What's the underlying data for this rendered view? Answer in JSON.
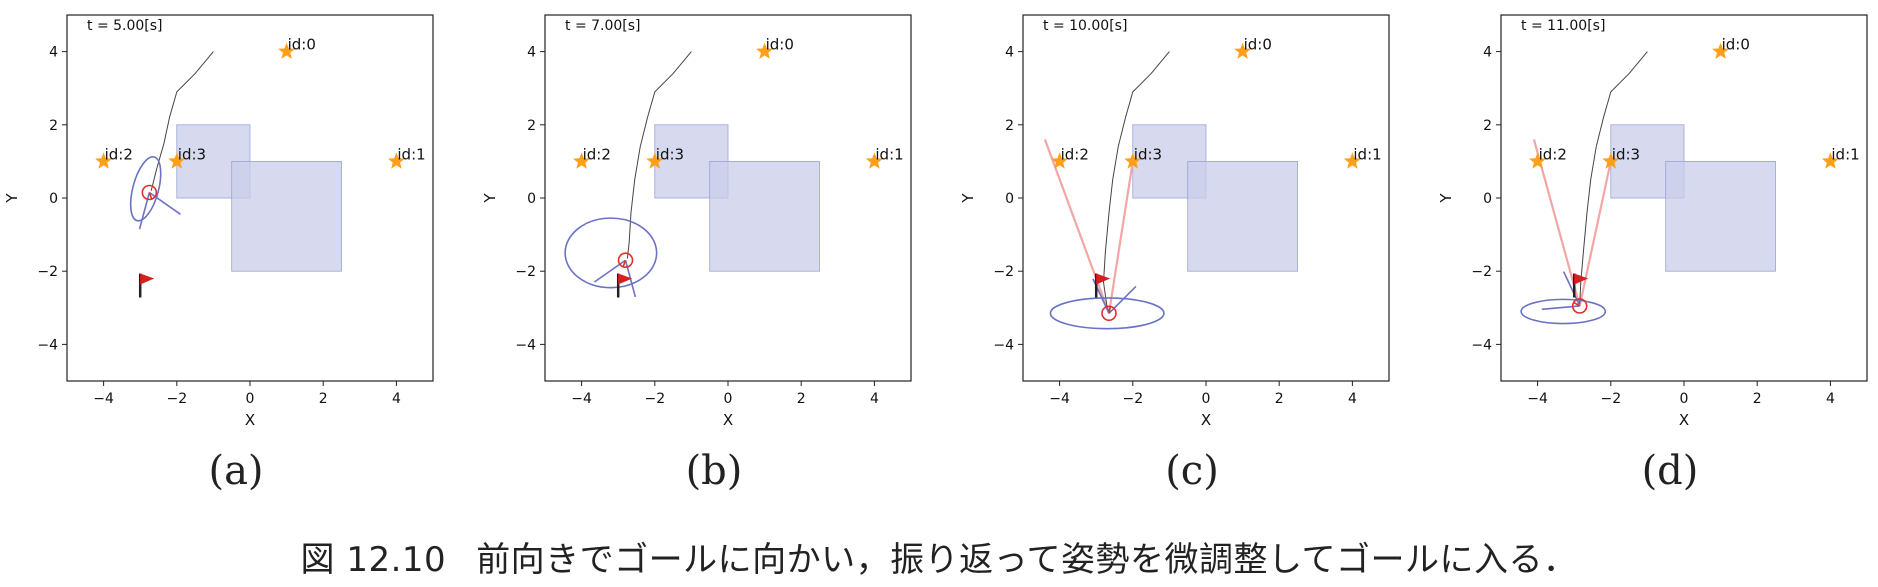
{
  "figure": {
    "caption_number": "図 12.10",
    "caption_text": "前向きでゴールに向かい，振り返って姿勢を微調整してゴールに入る．"
  },
  "colors": {
    "landmark": "#ff9f1a",
    "obstacle_fill": "#c9cdea",
    "obstacle_edge": "#9aa2d6",
    "path": "#444444",
    "ellipse": "#6b72c4",
    "robot": "#e0302a",
    "observation": "#f4a6a6",
    "flag": "#d81e1e"
  },
  "landmarks": [
    {
      "id": "id:0",
      "x": 1,
      "y": 4
    },
    {
      "id": "id:1",
      "x": 4,
      "y": 1
    },
    {
      "id": "id:2",
      "x": -4,
      "y": 1
    },
    {
      "id": "id:3",
      "x": -2,
      "y": 1
    }
  ],
  "obstacles": [
    {
      "x0": -2,
      "y0": 0,
      "x1": 0,
      "y1": 2
    },
    {
      "x0": -0.5,
      "y0": -2,
      "x1": 2.5,
      "y1": 1
    }
  ],
  "goal": {
    "x": -3,
    "y": -2.5
  },
  "axes": {
    "xlabel": "X",
    "ylabel": "Y",
    "xlim": [
      -5,
      5
    ],
    "ylim": [
      -5,
      5
    ],
    "xticks": [
      -4,
      -2,
      0,
      2,
      4
    ],
    "yticks": [
      -4,
      -2,
      0,
      2,
      4
    ]
  },
  "panels": [
    {
      "label": "(a)",
      "time": "t = 5.00[s]",
      "path": [
        [
          -1,
          4
        ],
        [
          -1.5,
          3.4
        ],
        [
          -2,
          2.9
        ],
        [
          -2.2,
          2.2
        ],
        [
          -2.35,
          1.5
        ],
        [
          -2.55,
          0.8
        ],
        [
          -2.7,
          0.2
        ]
      ],
      "robot": {
        "x": -2.75,
        "y": 0.15,
        "theta": -70
      },
      "ellipse": {
        "x": -2.85,
        "y": 0.25,
        "rx": 0.9,
        "ry": 0.35,
        "angle": 75
      },
      "observations": []
    },
    {
      "label": "(b)",
      "time": "t = 7.00[s]",
      "path": [
        [
          -1,
          4
        ],
        [
          -1.5,
          3.4
        ],
        [
          -2,
          2.9
        ],
        [
          -2.2,
          2.2
        ],
        [
          -2.4,
          1.4
        ],
        [
          -2.55,
          0.5
        ],
        [
          -2.65,
          -0.4
        ],
        [
          -2.7,
          -1.2
        ],
        [
          -2.75,
          -1.65
        ]
      ],
      "robot": {
        "x": -2.8,
        "y": -1.7,
        "theta": -110
      },
      "ellipse": {
        "x": -3.2,
        "y": -1.5,
        "rx": 1.25,
        "ry": 0.95,
        "angle": 0
      },
      "observations": []
    },
    {
      "label": "(c)",
      "time": "t = 10.00[s]",
      "path": [
        [
          -1,
          4
        ],
        [
          -1.5,
          3.4
        ],
        [
          -2,
          2.9
        ],
        [
          -2.2,
          2.2
        ],
        [
          -2.4,
          1.4
        ],
        [
          -2.55,
          0.5
        ],
        [
          -2.65,
          -0.4
        ],
        [
          -2.75,
          -1.5
        ],
        [
          -2.8,
          -2.3
        ],
        [
          -2.7,
          -3.0
        ],
        [
          -2.65,
          -3.1
        ]
      ],
      "robot": {
        "x": -2.65,
        "y": -3.15,
        "theta": 80
      },
      "ellipse": {
        "x": -2.7,
        "y": -3.15,
        "rx": 1.55,
        "ry": 0.42,
        "angle": 0
      },
      "observations": [
        [
          -4.4,
          1.6
        ],
        [
          -2.0,
          1.0
        ]
      ]
    },
    {
      "label": "(d)",
      "time": "t = 11.00[s]",
      "path": [
        [
          -1,
          4
        ],
        [
          -1.5,
          3.4
        ],
        [
          -2,
          2.9
        ],
        [
          -2.2,
          2.2
        ],
        [
          -2.4,
          1.4
        ],
        [
          -2.55,
          0.5
        ],
        [
          -2.65,
          -0.4
        ],
        [
          -2.75,
          -1.5
        ],
        [
          -2.82,
          -2.3
        ],
        [
          -2.85,
          -2.9
        ]
      ],
      "robot": {
        "x": -2.85,
        "y": -2.95,
        "theta": 150
      },
      "ellipse": {
        "x": -3.3,
        "y": -3.1,
        "rx": 1.15,
        "ry": 0.33,
        "angle": 0
      },
      "observations": [
        [
          -4.1,
          1.6
        ],
        [
          -2.0,
          1.0
        ]
      ]
    }
  ]
}
